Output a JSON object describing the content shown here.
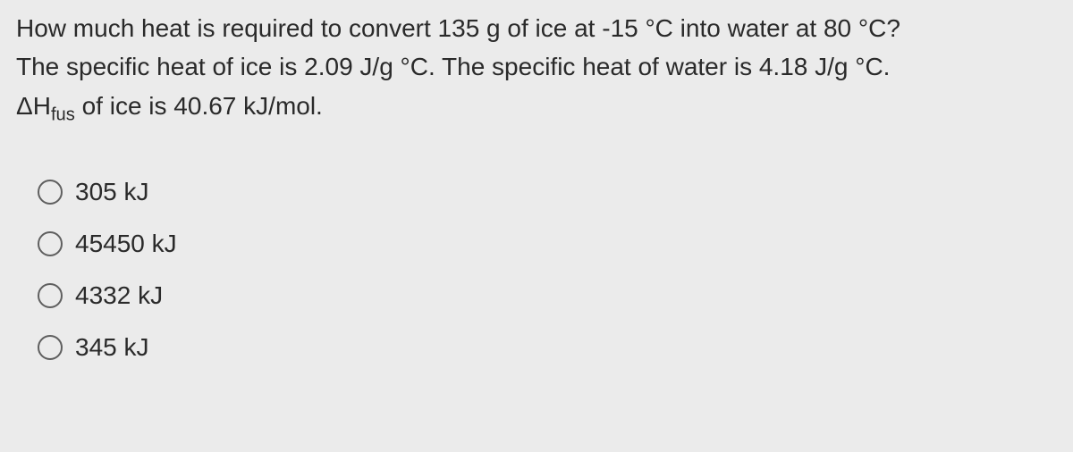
{
  "question": {
    "line1": "How much heat is required to convert 135 g of ice at -15 °C into water at 80 °C?",
    "line2": "The specific heat of ice is 2.09 J/g °C. The specific heat of water is 4.18 J/g °C.",
    "line3_prefix": "ΔH",
    "line3_sub": "fus",
    "line3_suffix": " of ice is 40.67 kJ/mol."
  },
  "options": [
    {
      "label": "305 kJ"
    },
    {
      "label": "45450 kJ"
    },
    {
      "label": "4332 kJ"
    },
    {
      "label": "345 kJ"
    }
  ],
  "colors": {
    "background": "#ebebeb",
    "text": "#2a2a2a",
    "radio_border": "#5f5f5f"
  },
  "typography": {
    "question_fontsize": 28,
    "option_fontsize": 28,
    "line_height": 1.55
  }
}
